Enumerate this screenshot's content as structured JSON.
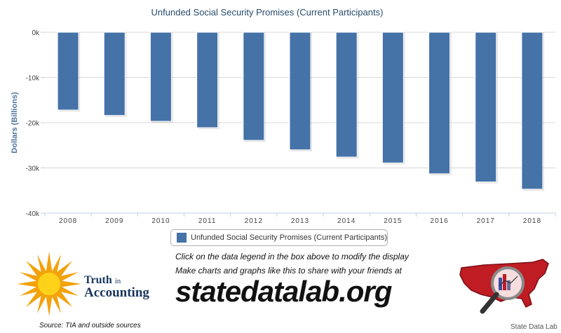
{
  "chart_data": {
    "type": "bar",
    "title": "Unfunded Social Security Promises (Current Participants)",
    "ylabel": "Dollars (Billions)",
    "xlabel": "",
    "categories": [
      "2008",
      "2009",
      "2010",
      "2011",
      "2012",
      "2013",
      "2014",
      "2015",
      "2016",
      "2017",
      "2018"
    ],
    "series": [
      {
        "name": "Unfunded Social Security Promises (Current Participants)",
        "values": [
          -17200,
          -18400,
          -19700,
          -21100,
          -23900,
          -26000,
          -27600,
          -28900,
          -31300,
          -33100,
          -34700
        ]
      }
    ],
    "ylim": [
      -40000,
      0
    ],
    "yticks": [
      0,
      -10000,
      -20000,
      -30000,
      -40000
    ],
    "ytick_labels": [
      "0k",
      "-10k",
      "-20k",
      "-30k",
      "-40k"
    ],
    "grid": true,
    "legend": "bottom-center",
    "bar_color": "#4572a7"
  },
  "footer": {
    "instruction": "Click on the data legend in the box above to modify the display",
    "promo": "Make charts and graphs like this to share with your friends at",
    "site": "statedatalab.org",
    "tia_word1": "Truth",
    "tia_word2": "in",
    "tia_word3": "Accounting",
    "source": "Source: TIA and outside sources",
    "sdl_label": "State Data Lab"
  }
}
